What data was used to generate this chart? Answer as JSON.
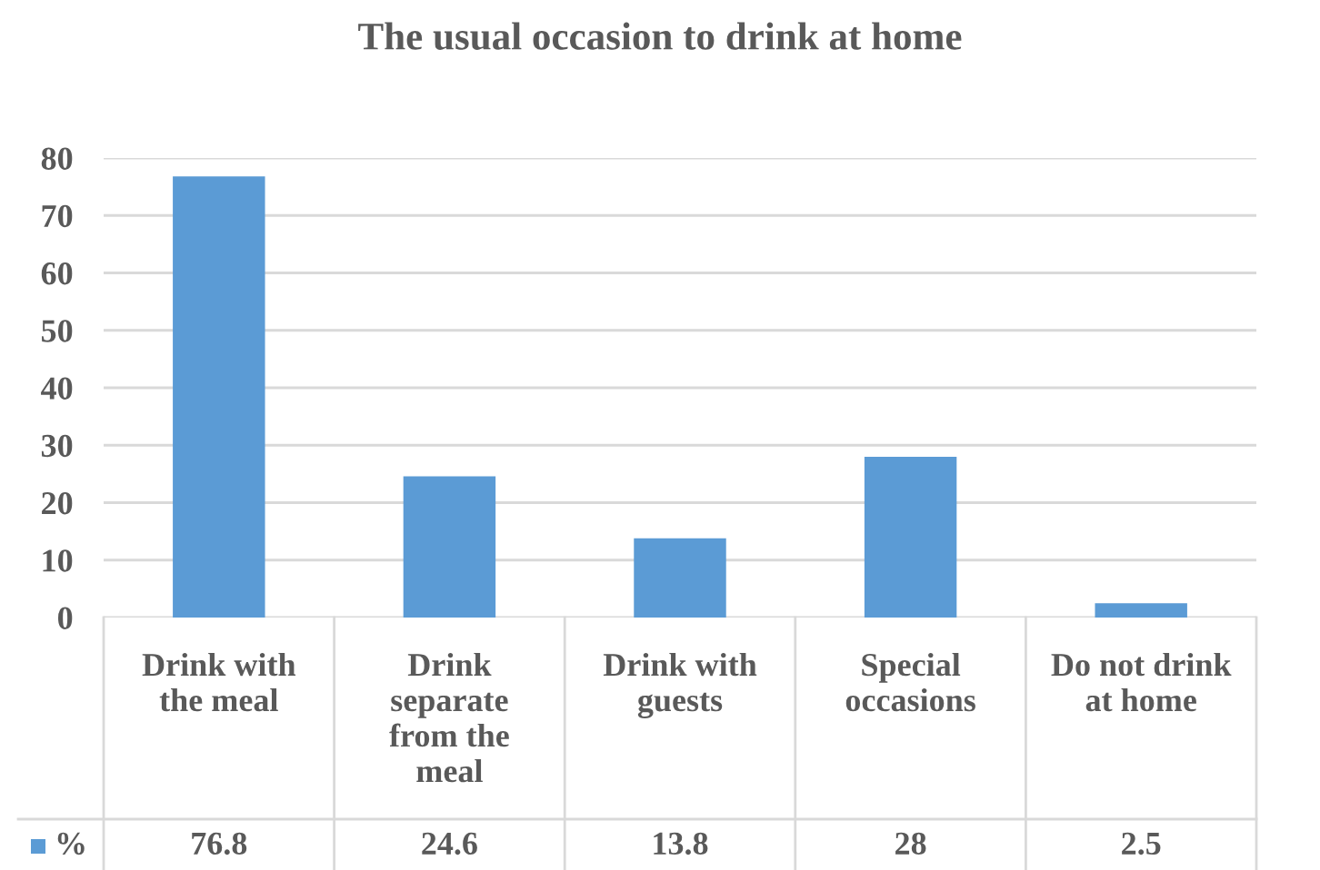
{
  "chart_data": {
    "type": "bar",
    "title": "The usual occasion to drink at home",
    "categories": [
      "Drink with the meal",
      "Drink separate from the meal",
      "Drink with guests",
      "Special occasions",
      "Do not drink at home"
    ],
    "series": [
      {
        "name": "%",
        "color": "#5b9bd5",
        "values": [
          76.8,
          24.6,
          13.8,
          28,
          2.5
        ]
      }
    ],
    "ylim": [
      0,
      80
    ],
    "yticks": [
      0,
      10,
      20,
      30,
      40,
      50,
      60,
      70,
      80
    ],
    "grid": "y",
    "data_labels": true
  }
}
